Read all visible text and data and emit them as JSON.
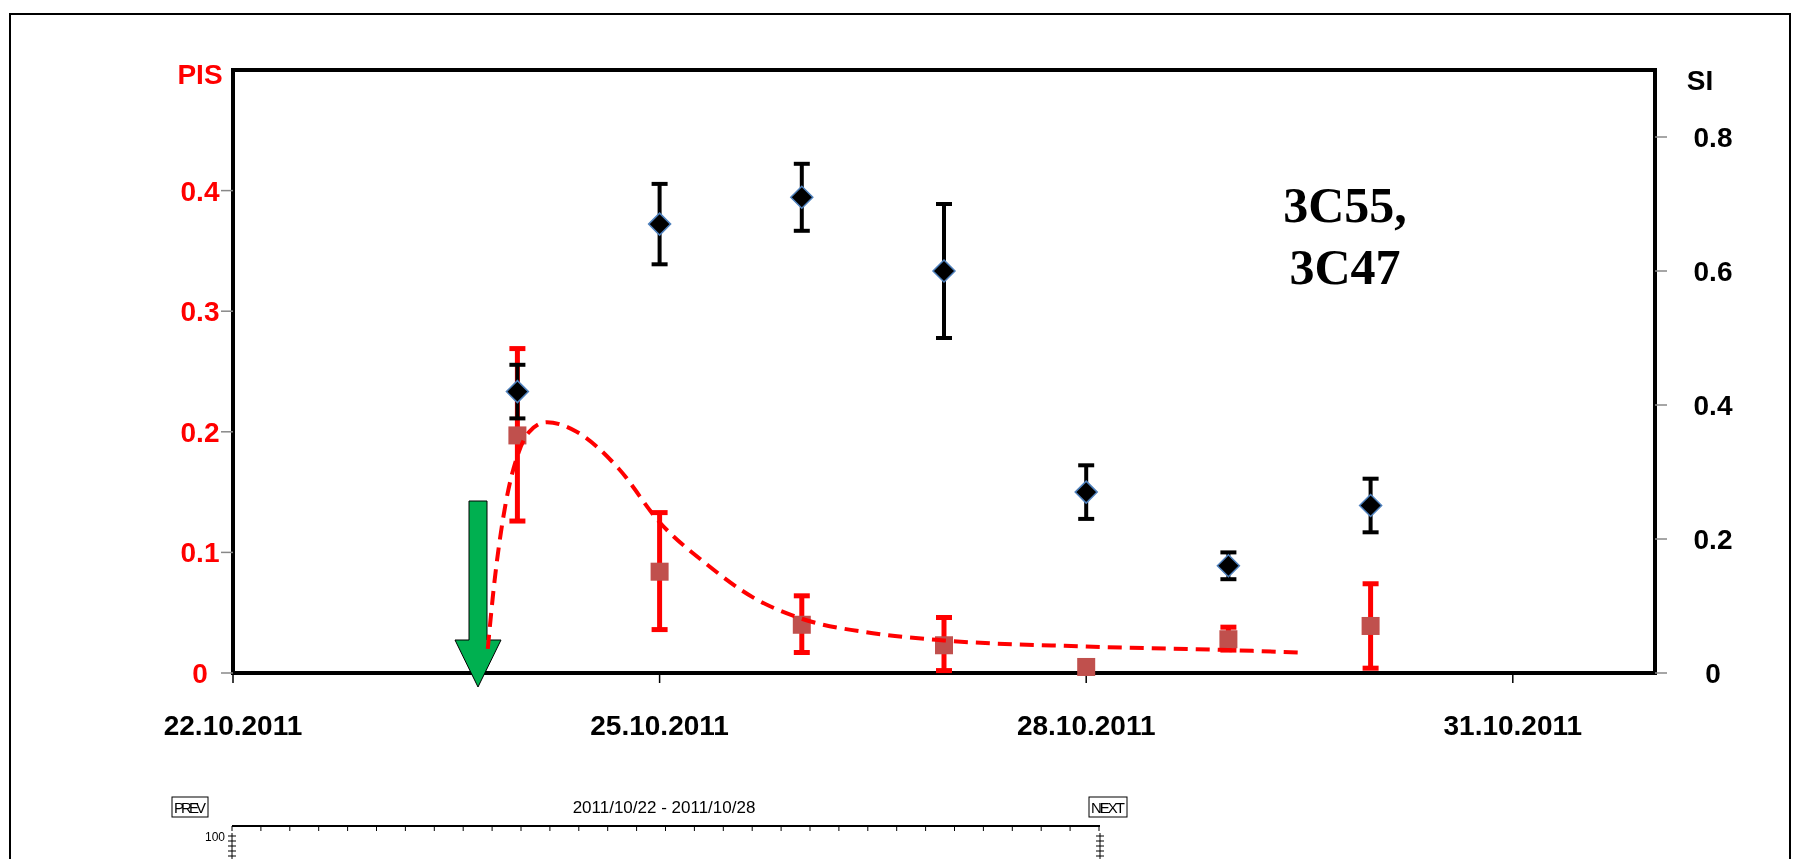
{
  "chart_data": {
    "type": "scatter",
    "ylabel": "PIS",
    "y2label": "SI",
    "x": [
      "2011-10-24",
      "2011-10-25",
      "2011-10-26",
      "2011-10-27",
      "2011-10-28",
      "2011-10-29",
      "2011-10-30"
    ],
    "xlim": [
      "2011-10-22",
      "2011-11-01"
    ],
    "xticks": [
      {
        "value": "2011-10-22",
        "label": "22.10.2011"
      },
      {
        "value": "2011-10-25",
        "label": "25.10.2011"
      },
      {
        "value": "2011-10-28",
        "label": "28.10.2011"
      },
      {
        "value": "2011-10-31",
        "label": "31.10.2011"
      }
    ],
    "ylim": [
      0,
      0.5
    ],
    "yticks": [
      0,
      0.1,
      0.2,
      0.3,
      0.4
    ],
    "y2lim": [
      0,
      0.9
    ],
    "y2ticks": [
      0,
      0.2,
      0.4,
      0.6,
      0.8
    ],
    "grid": false,
    "series": [
      {
        "axis": "y",
        "color": "#c0504d",
        "marker": "square",
        "values": [
          0.197,
          0.084,
          0.04,
          0.023,
          0.005,
          0.028,
          0.039
        ],
        "errors": [
          [
            0.126,
            0.269
          ],
          [
            0.036,
            0.133
          ],
          [
            0.017,
            0.064
          ],
          [
            0.002,
            0.046
          ],
          null,
          [
            0.019,
            0.038
          ],
          [
            0.004,
            0.074
          ]
        ]
      },
      {
        "type": "line",
        "axis": "y",
        "color": "#ff0000",
        "marker": "none",
        "line_style": "dashed",
        "x": [
          "2011-10-23T19:00",
          "2011-10-23T20:00",
          "2011-10-23T22:00",
          "2011-10-24T00:00",
          "2011-10-24T02:00",
          "2011-10-24T05:00",
          "2011-10-24T10:00",
          "2011-10-24T17:00",
          "2011-10-25T00:00",
          "2011-10-25T08:00",
          "2011-10-25T16:00",
          "2011-10-26T00:00",
          "2011-10-26T12:00",
          "2011-10-27T00:00",
          "2011-10-28T00:00",
          "2011-10-29T00:00",
          "2011-10-29T12:00"
        ],
        "values": [
          0.02,
          0.07,
          0.14,
          0.18,
          0.2,
          0.208,
          0.2,
          0.17,
          0.125,
          0.09,
          0.062,
          0.045,
          0.033,
          0.027,
          0.022,
          0.019,
          0.017
        ]
      },
      {
        "axis": "y2",
        "color": "#000000",
        "marker": "diamond",
        "values": [
          0.42,
          0.67,
          0.71,
          0.6,
          0.27,
          0.16,
          0.25
        ],
        "errors": [
          [
            0.38,
            0.46
          ],
          [
            0.61,
            0.73
          ],
          [
            0.66,
            0.76
          ],
          [
            0.5,
            0.7
          ],
          [
            0.23,
            0.31
          ],
          [
            0.14,
            0.18
          ],
          [
            0.21,
            0.29
          ]
        ]
      }
    ],
    "annotations": [
      "3C55, 3C47",
      "PREV",
      "2011/10/22 - 2011/10/28",
      "NEXT",
      "100"
    ]
  }
}
